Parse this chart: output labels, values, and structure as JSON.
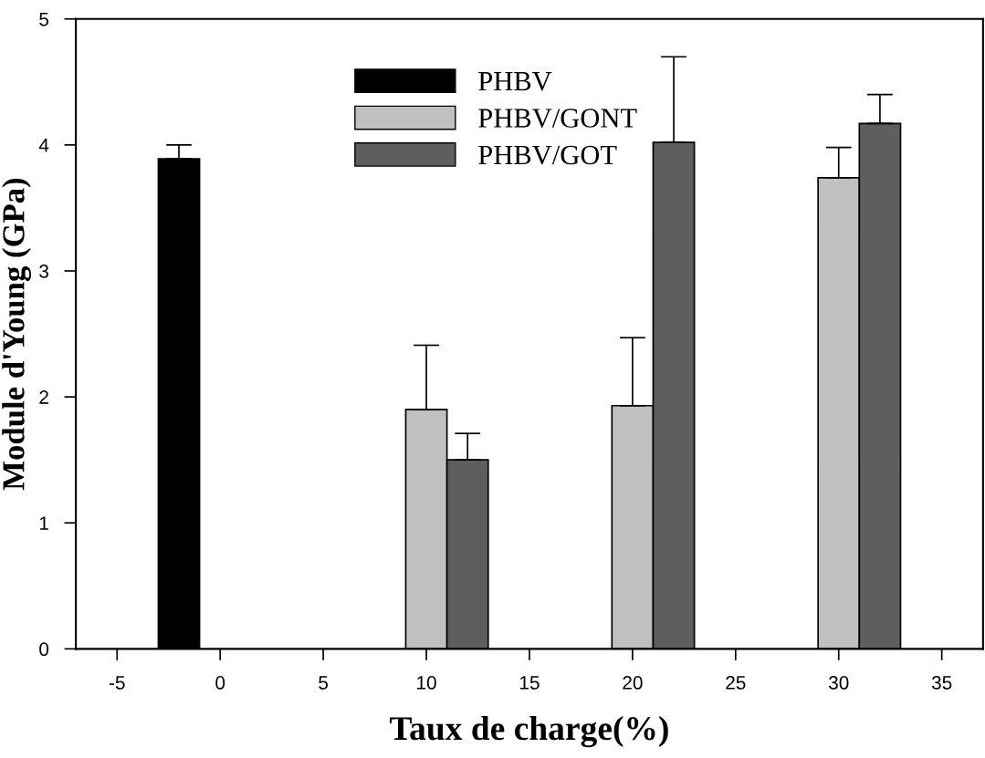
{
  "chart_data": {
    "type": "bar",
    "xlabel": "Taux de charge(%)",
    "ylabel": "Module d'Young (GPa)",
    "xlim": [
      -7,
      37
    ],
    "xticks": [
      -5,
      0,
      5,
      10,
      15,
      20,
      25,
      30,
      35
    ],
    "ylim": [
      0,
      5
    ],
    "yticks": [
      0,
      1,
      2,
      3,
      4,
      5
    ],
    "grid": false,
    "legend": "top",
    "series": [
      {
        "name": "PHBV",
        "color": "#000000",
        "x": [
          -2
        ],
        "values": [
          3.89
        ],
        "errors": [
          [
            3.89,
            4.0
          ]
        ]
      },
      {
        "name": "PHBV/GONT",
        "color": "#c0c0c0",
        "x": [
          10,
          20,
          30
        ],
        "values": [
          1.9,
          1.93,
          3.74
        ],
        "errors": [
          [
            1.9,
            2.41
          ],
          [
            1.93,
            2.47
          ],
          [
            3.74,
            3.98
          ]
        ]
      },
      {
        "name": "PHBV/GOT",
        "color": "#5e5e5e",
        "x": [
          12,
          22,
          32
        ],
        "values": [
          1.5,
          4.02,
          4.17
        ],
        "errors": [
          [
            1.5,
            1.71
          ],
          [
            4.02,
            4.7
          ],
          [
            4.17,
            4.4
          ]
        ]
      }
    ]
  }
}
